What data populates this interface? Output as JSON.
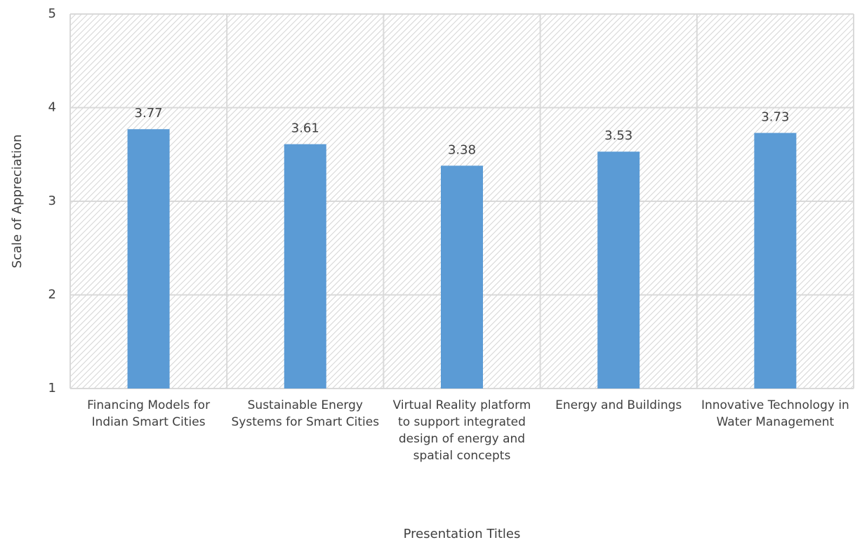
{
  "chart_data": {
    "type": "bar",
    "categories": [
      "Financing Models for Indian Smart Cities",
      "Sustainable Energy Systems for Smart Cities",
      "Virtual Reality platform to support integrated design of energy and spatial concepts",
      "Energy and Buildings",
      "Innovative Technology in Water Management"
    ],
    "values": [
      3.77,
      3.61,
      3.38,
      3.53,
      3.73
    ],
    "color": "#5b9bd5",
    "ylim": [
      1,
      5
    ],
    "yticks": [
      1,
      2,
      3,
      4,
      5
    ],
    "grid": true,
    "xlabel": "Presentation Titles",
    "ylabel": "Scale of Appreciation"
  }
}
